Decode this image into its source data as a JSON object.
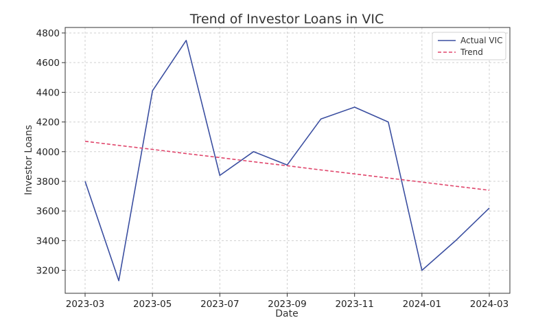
{
  "chart_data": {
    "type": "line",
    "title": "Trend of Investor Loans in VIC",
    "xlabel": "Date",
    "ylabel": "Investor Loans",
    "x": [
      "2023-03",
      "2023-04",
      "2023-05",
      "2023-06",
      "2023-07",
      "2023-08",
      "2023-09",
      "2023-10",
      "2023-11",
      "2023-12",
      "2024-01",
      "2024-02",
      "2024-03"
    ],
    "x_ticks": [
      "2023-03",
      "2023-05",
      "2023-07",
      "2023-09",
      "2023-11",
      "2024-01",
      "2024-03"
    ],
    "y_ticks": [
      3200,
      3400,
      3600,
      3800,
      4000,
      4200,
      4400,
      4600,
      4800
    ],
    "ylim": [
      3050,
      4830
    ],
    "grid": true,
    "legend_position": "top-right",
    "series": [
      {
        "name": "Actual VIC",
        "style": "solid",
        "color": "#3a4ea0",
        "values": [
          3800,
          3130,
          4410,
          4750,
          3840,
          4000,
          3910,
          4220,
          4300,
          4200,
          3200,
          3400,
          3620
        ]
      },
      {
        "name": "Trend",
        "style": "dashed",
        "color": "#e0456b",
        "values": [
          4070,
          4042,
          4015,
          3987,
          3960,
          3932,
          3905,
          3877,
          3850,
          3822,
          3795,
          3767,
          3740
        ]
      }
    ]
  }
}
